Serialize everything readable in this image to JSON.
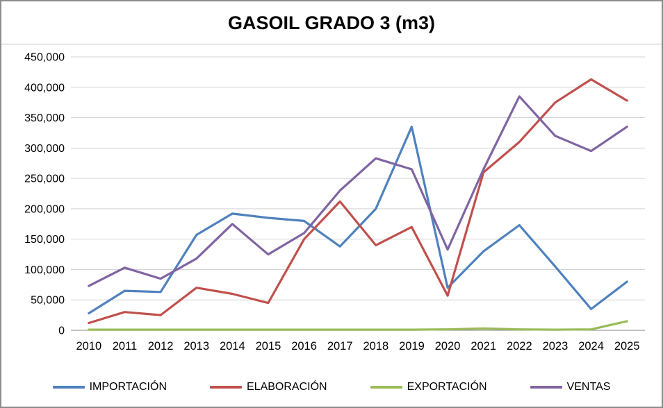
{
  "chart_data": {
    "type": "line",
    "title": "GASOIL GRADO 3 (m3)",
    "categories": [
      "2010",
      "2011",
      "2012",
      "2013",
      "2014",
      "2015",
      "2016",
      "2017",
      "2018",
      "2019",
      "2020",
      "2021",
      "2022",
      "2023",
      "2024",
      "2025"
    ],
    "xlabel": "",
    "ylabel": "",
    "ylim": [
      0,
      450000
    ],
    "ytick_step": 50000,
    "grid": true,
    "legend_position": "bottom",
    "series": [
      {
        "name": "IMPORTACIÓN",
        "color": "#4F81BD",
        "values": [
          28000,
          65000,
          63000,
          157000,
          192000,
          185000,
          180000,
          138000,
          200000,
          335000,
          70000,
          130000,
          173000,
          105000,
          35000,
          80000
        ]
      },
      {
        "name": "ELABORACIÓN",
        "color": "#C0504D",
        "values": [
          12000,
          30000,
          25000,
          70000,
          60000,
          45000,
          150000,
          212000,
          140000,
          170000,
          57000,
          260000,
          310000,
          375000,
          413000,
          378000
        ]
      },
      {
        "name": "EXPORTACIÓN",
        "color": "#9BBB59",
        "values": [
          1000,
          1000,
          1000,
          1000,
          1000,
          1000,
          1000,
          1000,
          1000,
          1000,
          1500,
          3000,
          1500,
          1000,
          1500,
          15000
        ]
      },
      {
        "name": "VENTAS",
        "color": "#8064A2",
        "values": [
          73000,
          103000,
          85000,
          118000,
          175000,
          125000,
          160000,
          230000,
          283000,
          265000,
          133000,
          265000,
          385000,
          320000,
          295000,
          335000
        ]
      }
    ]
  }
}
